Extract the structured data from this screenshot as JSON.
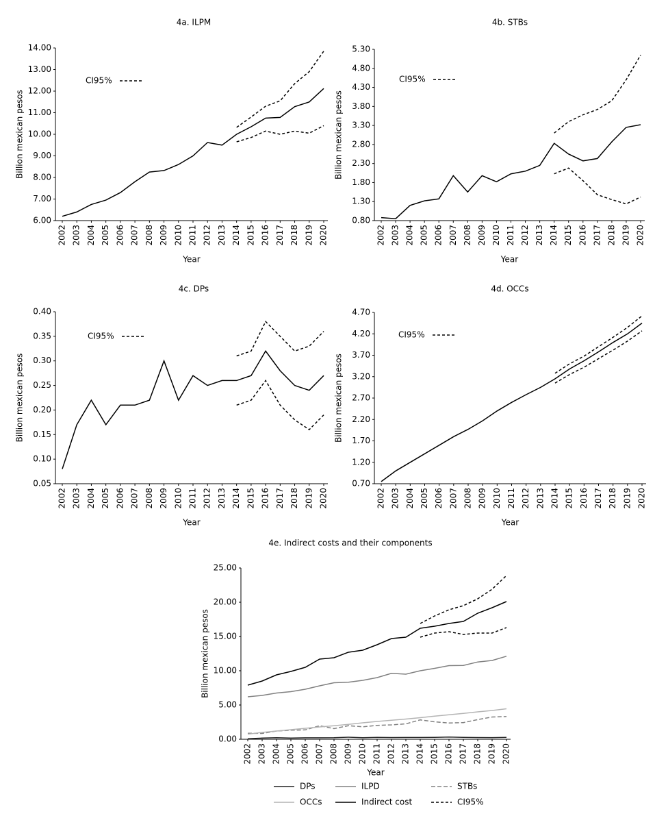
{
  "chart_data": [
    {
      "type": "line",
      "title": "4a. ILPM",
      "xlabel": "Year",
      "ylabel": "Billion mexican pesos",
      "legend": "upper left",
      "x": [
        2002,
        2003,
        2004,
        2005,
        2006,
        2007,
        2008,
        2009,
        2010,
        2011,
        2012,
        2013,
        2014,
        2015,
        2016,
        2017,
        2018,
        2019,
        2020
      ],
      "ylim": [
        6,
        14
      ],
      "yticks": [
        {
          "value": 6,
          "label": "6.00"
        },
        {
          "value": 7,
          "label": "7.00"
        },
        {
          "value": 8,
          "label": "8.00"
        },
        {
          "value": 9,
          "label": "9.00"
        },
        {
          "value": 10,
          "label": "10.00"
        },
        {
          "value": 11,
          "label": "11.00"
        },
        {
          "value": 12,
          "label": "12.00"
        },
        {
          "value": 13,
          "label": "13.00"
        },
        {
          "value": 14,
          "label": "14.00"
        }
      ],
      "series": [
        {
          "color": "#000000",
          "style": "solid",
          "values": [
            6.2,
            6.4,
            6.75,
            6.95,
            7.3,
            7.8,
            8.25,
            8.32,
            8.6,
            9.0,
            9.62,
            9.5,
            10.0,
            10.35,
            10.75,
            10.78,
            11.28,
            11.5,
            12.12
          ]
        },
        {
          "name": "CI95%",
          "color": "#000000",
          "style": "dashed",
          "values": [
            null,
            null,
            null,
            null,
            null,
            null,
            null,
            null,
            null,
            null,
            null,
            null,
            10.32,
            10.8,
            11.3,
            11.55,
            12.35,
            12.9,
            13.85
          ]
        },
        {
          "color": "#000000",
          "style": "dashed",
          "values": [
            null,
            null,
            null,
            null,
            null,
            null,
            null,
            null,
            null,
            null,
            null,
            null,
            9.65,
            9.85,
            10.15,
            10.0,
            10.15,
            10.05,
            10.4
          ]
        }
      ]
    },
    {
      "type": "line",
      "title": "4b. STBs",
      "xlabel": "Year",
      "ylabel": "Billion mexican pesos",
      "legend": "upper left",
      "x": [
        2002,
        2003,
        2004,
        2005,
        2006,
        2007,
        2008,
        2009,
        2010,
        2011,
        2012,
        2013,
        2014,
        2015,
        2016,
        2017,
        2018,
        2019,
        2020
      ],
      "ylim": [
        0.8,
        5.3
      ],
      "yticks": [
        {
          "value": 0.8,
          "label": "0.80"
        },
        {
          "value": 1.3,
          "label": "1.30"
        },
        {
          "value": 1.8,
          "label": "1.80"
        },
        {
          "value": 2.3,
          "label": "2.30"
        },
        {
          "value": 2.8,
          "label": "2.80"
        },
        {
          "value": 3.3,
          "label": "3.30"
        },
        {
          "value": 3.8,
          "label": "3.80"
        },
        {
          "value": 4.3,
          "label": "4.30"
        },
        {
          "value": 4.8,
          "label": "4.80"
        },
        {
          "value": 5.3,
          "label": "5.30"
        }
      ],
      "series": [
        {
          "color": "#000000",
          "style": "solid",
          "values": [
            0.88,
            0.85,
            1.2,
            1.32,
            1.37,
            1.98,
            1.55,
            1.98,
            1.82,
            2.03,
            2.1,
            2.25,
            2.83,
            2.55,
            2.37,
            2.43,
            2.87,
            3.25,
            3.32
          ]
        },
        {
          "name": "CI95%",
          "color": "#000000",
          "style": "dashed",
          "values": [
            null,
            null,
            null,
            null,
            null,
            null,
            null,
            null,
            null,
            null,
            null,
            null,
            3.1,
            3.4,
            3.58,
            3.72,
            3.95,
            4.5,
            5.15
          ]
        },
        {
          "color": "#000000",
          "style": "dashed",
          "values": [
            null,
            null,
            null,
            null,
            null,
            null,
            null,
            null,
            null,
            null,
            null,
            null,
            2.03,
            2.18,
            1.85,
            1.48,
            1.35,
            1.24,
            1.42
          ]
        }
      ]
    },
    {
      "type": "line",
      "title": "4c. DPs",
      "xlabel": "Year",
      "ylabel": "Billion mexican pesos",
      "legend": "upper left",
      "x": [
        2002,
        2003,
        2004,
        2005,
        2006,
        2007,
        2008,
        2009,
        2010,
        2011,
        2012,
        2013,
        2014,
        2015,
        2016,
        2017,
        2018,
        2019,
        2020
      ],
      "ylim": [
        0.05,
        0.4
      ],
      "yticks": [
        {
          "value": 0.05,
          "label": "0.05"
        },
        {
          "value": 0.1,
          "label": "0.10"
        },
        {
          "value": 0.15,
          "label": "0.15"
        },
        {
          "value": 0.2,
          "label": "0.20"
        },
        {
          "value": 0.25,
          "label": "0.25"
        },
        {
          "value": 0.3,
          "label": "0.30"
        },
        {
          "value": 0.35,
          "label": "0.35"
        },
        {
          "value": 0.4,
          "label": "0.40"
        }
      ],
      "series": [
        {
          "color": "#000000",
          "style": "solid",
          "values": [
            0.08,
            0.17,
            0.22,
            0.17,
            0.21,
            0.21,
            0.22,
            0.3,
            0.22,
            0.27,
            0.25,
            0.26,
            0.26,
            0.27,
            0.32,
            0.28,
            0.25,
            0.24,
            0.27
          ]
        },
        {
          "name": "CI95%",
          "color": "#000000",
          "style": "dashed",
          "values": [
            null,
            null,
            null,
            null,
            null,
            null,
            null,
            null,
            null,
            null,
            null,
            null,
            0.31,
            0.32,
            0.38,
            0.35,
            0.32,
            0.33,
            0.36
          ]
        },
        {
          "color": "#000000",
          "style": "dashed",
          "values": [
            null,
            null,
            null,
            null,
            null,
            null,
            null,
            null,
            null,
            null,
            null,
            null,
            0.21,
            0.22,
            0.26,
            0.21,
            0.18,
            0.16,
            0.19
          ]
        }
      ]
    },
    {
      "type": "line",
      "title": "4d. OCCs",
      "xlabel": "Year",
      "ylabel": "Billion mexican pesos",
      "legend": "upper left",
      "x": [
        2002,
        2003,
        2004,
        2005,
        2006,
        2007,
        2008,
        2009,
        2010,
        2011,
        2012,
        2013,
        2014,
        2015,
        2016,
        2017,
        2018,
        2019,
        2020
      ],
      "ylim": [
        0.7,
        4.7
      ],
      "yticks": [
        {
          "value": 0.7,
          "label": "0.70"
        },
        {
          "value": 1.2,
          "label": "1.20"
        },
        {
          "value": 1.7,
          "label": "1.70"
        },
        {
          "value": 2.2,
          "label": "2.20"
        },
        {
          "value": 2.7,
          "label": "2.70"
        },
        {
          "value": 3.2,
          "label": "3.20"
        },
        {
          "value": 3.7,
          "label": "3.70"
        },
        {
          "value": 4.2,
          "label": "4.20"
        },
        {
          "value": 4.7,
          "label": "4.70"
        }
      ],
      "series": [
        {
          "color": "#000000",
          "style": "solid",
          "values": [
            0.75,
            1.0,
            1.2,
            1.4,
            1.6,
            1.8,
            1.97,
            2.17,
            2.4,
            2.6,
            2.78,
            2.95,
            3.15,
            3.38,
            3.57,
            3.78,
            4.0,
            4.2,
            4.45
          ]
        },
        {
          "name": "CI95%",
          "color": "#000000",
          "style": "dashed",
          "values": [
            null,
            null,
            null,
            null,
            null,
            null,
            null,
            null,
            null,
            null,
            null,
            null,
            3.28,
            3.5,
            3.68,
            3.9,
            4.12,
            4.35,
            4.62
          ]
        },
        {
          "color": "#000000",
          "style": "dashed",
          "values": [
            null,
            null,
            null,
            null,
            null,
            null,
            null,
            null,
            null,
            null,
            null,
            null,
            3.05,
            3.25,
            3.42,
            3.62,
            3.82,
            4.03,
            4.27
          ]
        }
      ]
    },
    {
      "type": "line",
      "title": "4e. Indirect costs and their components",
      "xlabel": "Year",
      "ylabel": "Billion mexican pesos",
      "legend": "bottom",
      "x": [
        2002,
        2003,
        2004,
        2005,
        2006,
        2007,
        2008,
        2009,
        2010,
        2011,
        2012,
        2013,
        2014,
        2015,
        2016,
        2017,
        2018,
        2019,
        2020
      ],
      "ylim": [
        0,
        25
      ],
      "yticks": [
        {
          "value": 0,
          "label": "0.00"
        },
        {
          "value": 5,
          "label": "5.00"
        },
        {
          "value": 10,
          "label": "10.00"
        },
        {
          "value": 15,
          "label": "15.00"
        },
        {
          "value": 20,
          "label": "20.00"
        },
        {
          "value": 25,
          "label": "25.00"
        }
      ],
      "series": [
        {
          "name": "DPs",
          "color": "#222222",
          "style": "solid",
          "values": [
            0.08,
            0.17,
            0.22,
            0.17,
            0.21,
            0.21,
            0.22,
            0.3,
            0.22,
            0.27,
            0.25,
            0.26,
            0.26,
            0.27,
            0.32,
            0.28,
            0.25,
            0.24,
            0.27
          ]
        },
        {
          "name": "ILPD",
          "color": "#808080",
          "style": "solid",
          "values": [
            6.2,
            6.4,
            6.75,
            6.95,
            7.3,
            7.8,
            8.25,
            8.32,
            8.6,
            9.0,
            9.62,
            9.5,
            10.0,
            10.35,
            10.75,
            10.78,
            11.28,
            11.5,
            12.12
          ]
        },
        {
          "name": "STBs",
          "color": "#808080",
          "style": "longdash",
          "values": [
            0.88,
            0.85,
            1.2,
            1.32,
            1.37,
            1.98,
            1.55,
            1.98,
            1.82,
            2.03,
            2.1,
            2.25,
            2.83,
            2.55,
            2.37,
            2.43,
            2.87,
            3.25,
            3.32
          ]
        },
        {
          "name": "OCCs",
          "color": "#b4b4b4",
          "style": "solid",
          "values": [
            0.75,
            1.0,
            1.2,
            1.4,
            1.6,
            1.8,
            1.97,
            2.17,
            2.4,
            2.6,
            2.78,
            2.95,
            3.15,
            3.38,
            3.57,
            3.78,
            4.0,
            4.2,
            4.45
          ]
        },
        {
          "name": "Indirect cost",
          "color": "#000000",
          "style": "solid",
          "values": [
            7.9,
            8.5,
            9.4,
            9.9,
            10.5,
            11.7,
            11.9,
            12.7,
            13.0,
            13.8,
            14.7,
            14.9,
            16.2,
            16.5,
            16.9,
            17.2,
            18.4,
            19.2,
            20.1
          ]
        },
        {
          "name": "CI95%",
          "color": "#000000",
          "style": "dashed",
          "values": [
            null,
            null,
            null,
            null,
            null,
            null,
            null,
            null,
            null,
            null,
            null,
            null,
            16.9,
            18.0,
            18.9,
            19.5,
            20.5,
            21.9,
            23.9
          ]
        },
        {
          "color": "#000000",
          "style": "dashed",
          "values": [
            null,
            null,
            null,
            null,
            null,
            null,
            null,
            null,
            null,
            null,
            null,
            null,
            14.9,
            15.5,
            15.7,
            15.3,
            15.5,
            15.5,
            16.3
          ]
        }
      ]
    }
  ]
}
